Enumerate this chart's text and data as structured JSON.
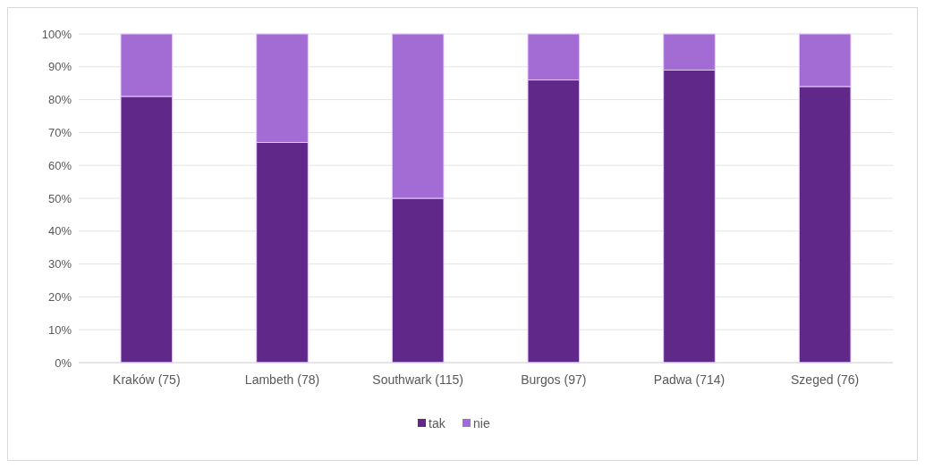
{
  "chart_data": {
    "type": "bar",
    "stacked": true,
    "categories": [
      "Kraków (75)",
      "Lambeth (78)",
      "Southwark (115)",
      "Burgos (97)",
      "Padwa (714)",
      "Szeged (76)"
    ],
    "series": [
      {
        "name": "tak",
        "color": "#5f2889",
        "values": [
          81,
          67,
          50,
          86,
          89,
          84
        ]
      },
      {
        "name": "nie",
        "color": "#a36bd4",
        "values": [
          19,
          33,
          50,
          14,
          11,
          16
        ]
      }
    ],
    "ylim": [
      0,
      100
    ],
    "yticks": [
      {
        "value": 0,
        "label": "0%"
      },
      {
        "value": 10,
        "label": "10%"
      },
      {
        "value": 20,
        "label": "20%"
      },
      {
        "value": 30,
        "label": "30%"
      },
      {
        "value": 40,
        "label": "40%"
      },
      {
        "value": 50,
        "label": "50%"
      },
      {
        "value": 60,
        "label": "60%"
      },
      {
        "value": 70,
        "label": "70%"
      },
      {
        "value": 80,
        "label": "80%"
      },
      {
        "value": 90,
        "label": "90%"
      },
      {
        "value": 100,
        "label": "100%"
      }
    ],
    "grid": "y",
    "legend": "bottom"
  }
}
